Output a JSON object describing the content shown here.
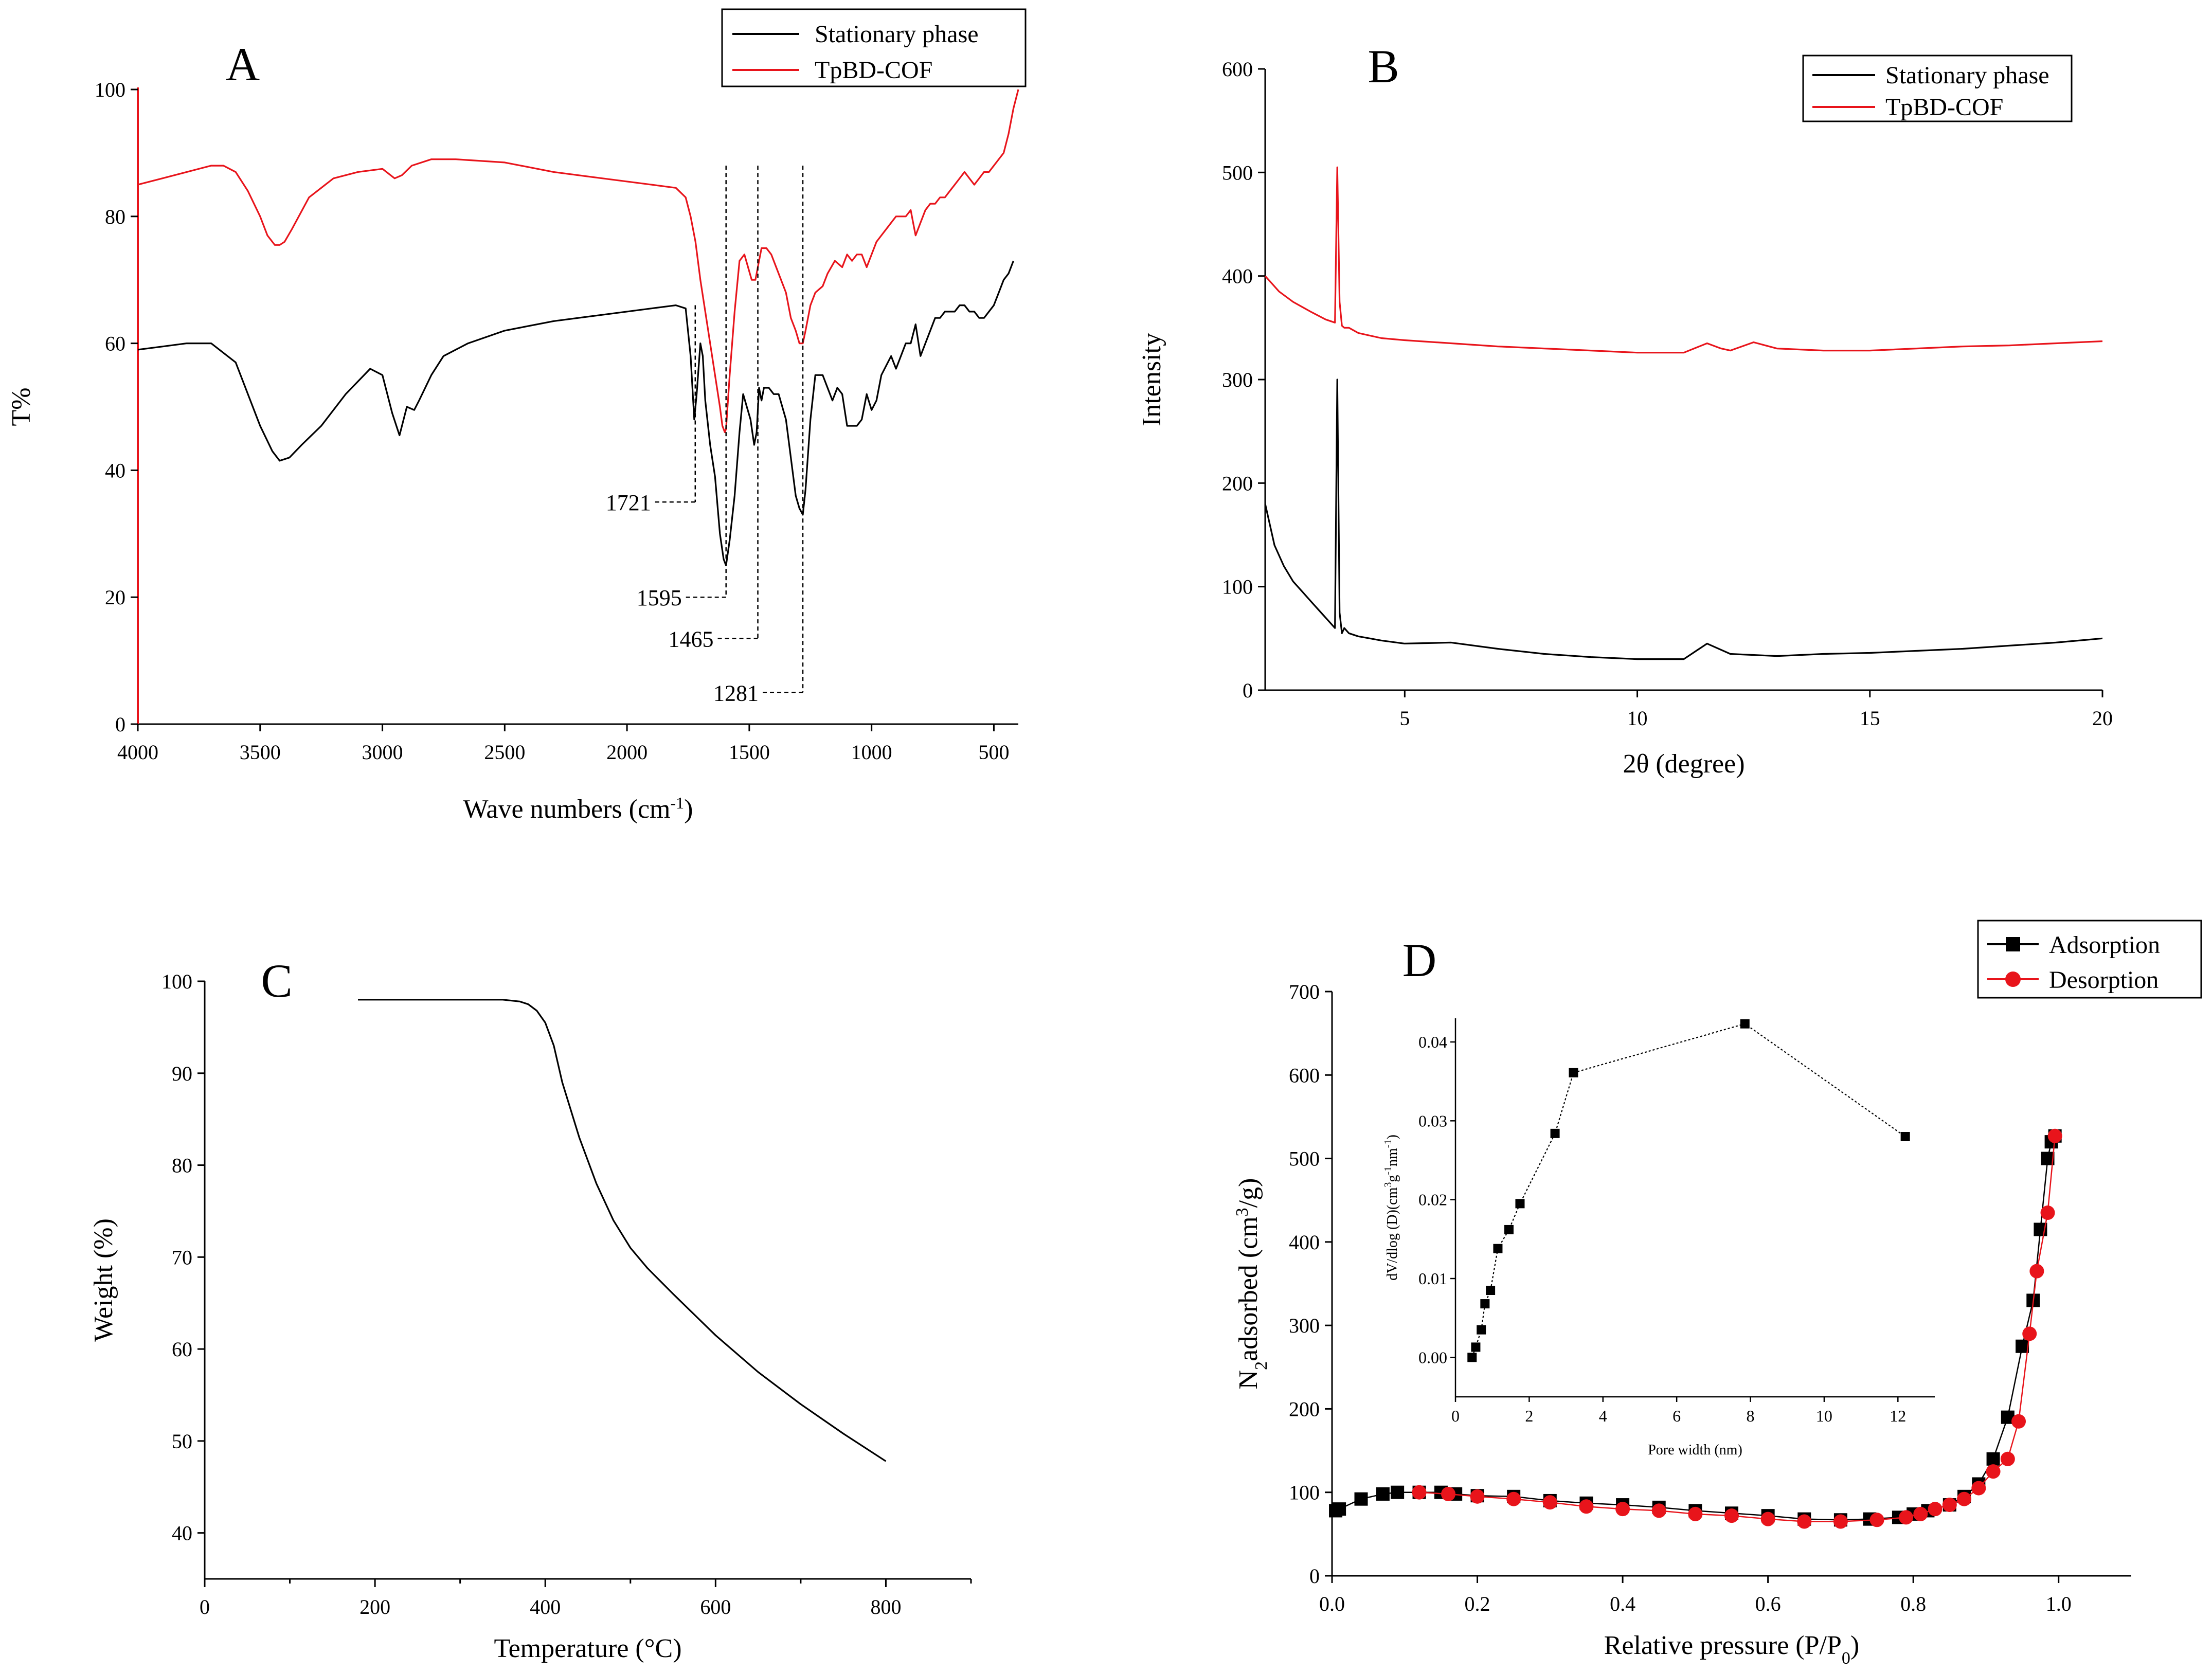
{
  "colors": {
    "black": "#000000",
    "red": "#e8141b",
    "white": "#ffffff"
  },
  "chart_data": [
    {
      "id": "A",
      "type": "line",
      "panel_label": "A",
      "xlabel": "Wave numbers (cm",
      "xlabel_sup": "-1",
      "xlabel_tail": ")",
      "ylabel": "T%",
      "xlim": [
        4000,
        400
      ],
      "ylim": [
        0,
        100
      ],
      "xticks": [
        4000,
        3500,
        3000,
        2500,
        2000,
        1500,
        1000,
        500
      ],
      "yticks": [
        0,
        20,
        40,
        60,
        80,
        100
      ],
      "legend": {
        "position": "top-right",
        "entries": [
          "Stationary phase",
          "TpBD-COF"
        ]
      },
      "annotations": [
        {
          "text": "1721",
          "x": 1721,
          "y_peak": 66,
          "y_text": 35
        },
        {
          "text": "1595",
          "x": 1595,
          "y_peak": 88,
          "y_text": 20
        },
        {
          "text": "1465",
          "x": 1465,
          "y_peak": 88,
          "y_text": 13.5
        },
        {
          "text": "1281",
          "x": 1281,
          "y_peak": 88,
          "y_text": 5
        }
      ],
      "series": [
        {
          "name": "Stationary phase",
          "color": "#000000",
          "x": [
            4000,
            3900,
            3800,
            3700,
            3600,
            3550,
            3500,
            3450,
            3420,
            3380,
            3330,
            3250,
            3150,
            3050,
            3000,
            2960,
            2930,
            2900,
            2870,
            2850,
            2800,
            2750,
            2650,
            2500,
            2300,
            2100,
            1900,
            1800,
            1760,
            1740,
            1725,
            1715,
            1700,
            1690,
            1680,
            1660,
            1640,
            1620,
            1605,
            1595,
            1580,
            1560,
            1540,
            1525,
            1510,
            1495,
            1480,
            1470,
            1460,
            1450,
            1440,
            1420,
            1400,
            1380,
            1350,
            1330,
            1310,
            1295,
            1281,
            1270,
            1250,
            1230,
            1200,
            1180,
            1160,
            1140,
            1120,
            1100,
            1060,
            1040,
            1020,
            1000,
            980,
            960,
            920,
            900,
            880,
            860,
            840,
            820,
            800,
            780,
            760,
            740,
            720,
            700,
            680,
            660,
            640,
            620,
            600,
            580,
            560,
            540,
            520,
            500,
            480,
            460,
            440,
            420
          ],
          "y": [
            59,
            59.5,
            60,
            60,
            57,
            52,
            47,
            43,
            41.5,
            42,
            44,
            47,
            52,
            56,
            55,
            49,
            45.5,
            50,
            49.5,
            51,
            55,
            58,
            60,
            62,
            63.5,
            64.5,
            65.5,
            66,
            65.5,
            58,
            48,
            52,
            60,
            58,
            51,
            44,
            39,
            30,
            26,
            25,
            29,
            36,
            46,
            52,
            50,
            48,
            44,
            46,
            53,
            51,
            53,
            53,
            52,
            52,
            48,
            42,
            36,
            34,
            33,
            37,
            48,
            55,
            55,
            53,
            51,
            53,
            52,
            47,
            47,
            48,
            52,
            49.5,
            51,
            55,
            58,
            56,
            58,
            60,
            60,
            63,
            58,
            60,
            62,
            64,
            64,
            65,
            65,
            65,
            66,
            66,
            65,
            65,
            64,
            64,
            65,
            66,
            68,
            70,
            71,
            73
          ]
        },
        {
          "name": "TpBD-COF",
          "color": "#e8141b",
          "x": [
            4000,
            3900,
            3800,
            3700,
            3650,
            3600,
            3550,
            3500,
            3470,
            3440,
            3420,
            3400,
            3370,
            3300,
            3200,
            3100,
            3000,
            2950,
            2920,
            2880,
            2800,
            2700,
            2500,
            2300,
            2100,
            1900,
            1800,
            1760,
            1740,
            1720,
            1700,
            1680,
            1660,
            1640,
            1620,
            1610,
            1600,
            1595,
            1580,
            1560,
            1540,
            1520,
            1505,
            1490,
            1475,
            1465,
            1450,
            1430,
            1410,
            1390,
            1370,
            1350,
            1330,
            1310,
            1295,
            1281,
            1270,
            1250,
            1230,
            1200,
            1180,
            1150,
            1120,
            1100,
            1080,
            1060,
            1040,
            1020,
            1000,
            980,
            960,
            940,
            920,
            900,
            880,
            860,
            840,
            830,
            820,
            800,
            780,
            760,
            740,
            720,
            700,
            680,
            660,
            640,
            620,
            600,
            580,
            560,
            540,
            520,
            500,
            480,
            460,
            440,
            420,
            400
          ],
          "y": [
            85,
            86,
            87,
            88,
            88,
            87,
            84,
            80,
            77,
            75.5,
            75.5,
            76,
            78,
            83,
            86,
            87,
            87.5,
            86,
            86.5,
            88,
            89,
            89,
            88.5,
            87,
            86,
            85,
            84.5,
            83,
            80,
            76,
            70,
            65,
            60,
            55,
            50,
            47,
            46,
            46.5,
            55,
            65,
            73,
            74,
            72,
            70,
            70,
            72,
            75,
            75,
            74,
            72,
            70,
            68,
            64,
            62,
            60,
            60,
            62,
            66,
            68,
            69,
            71,
            73,
            72,
            74,
            73,
            74,
            74,
            72,
            74,
            76,
            77,
            78,
            79,
            80,
            80,
            80,
            81,
            79,
            77,
            79,
            81,
            82,
            82,
            83,
            83,
            84,
            85,
            86,
            87,
            86,
            85,
            86,
            87,
            87,
            88,
            89,
            90,
            93,
            97,
            100
          ]
        }
      ]
    },
    {
      "id": "B",
      "type": "line",
      "panel_label": "B",
      "xlabel": "2θ (degree)",
      "ylabel": "Intensity",
      "xlim": [
        2,
        20
      ],
      "ylim": [
        0,
        600
      ],
      "xticks": [
        5,
        10,
        15,
        20
      ],
      "yticks": [
        0,
        100,
        200,
        300,
        400,
        500,
        600
      ],
      "legend": {
        "position": "top-right",
        "entries": [
          "Stationary phase",
          "TpBD-COF"
        ]
      },
      "series": [
        {
          "name": "Stationary phase",
          "color": "#000000",
          "x": [
            2,
            2.2,
            2.4,
            2.6,
            2.8,
            3,
            3.2,
            3.4,
            3.5,
            3.55,
            3.6,
            3.65,
            3.7,
            3.8,
            4,
            4.5,
            5,
            6,
            7,
            8,
            9,
            10,
            11,
            11.5,
            12,
            13,
            14,
            15,
            16,
            17,
            18,
            19,
            20
          ],
          "y": [
            180,
            140,
            120,
            105,
            95,
            85,
            75,
            65,
            60,
            300,
            75,
            55,
            60,
            55,
            52,
            48,
            45,
            46,
            40,
            35,
            32,
            30,
            30,
            45,
            35,
            33,
            35,
            36,
            38,
            40,
            43,
            46,
            50
          ]
        },
        {
          "name": "TpBD-COF",
          "color": "#e8141b",
          "x": [
            2,
            2.1,
            2.3,
            2.6,
            3,
            3.3,
            3.5,
            3.55,
            3.6,
            3.65,
            3.7,
            3.8,
            4,
            4.5,
            5,
            6,
            7,
            8,
            9,
            10,
            11,
            11.5,
            11.8,
            12,
            12.5,
            13,
            14,
            15,
            16,
            17,
            18,
            19,
            20
          ],
          "y": [
            400,
            395,
            385,
            375,
            365,
            358,
            355,
            505,
            375,
            352,
            350,
            350,
            345,
            340,
            338,
            335,
            332,
            330,
            328,
            326,
            326,
            335,
            330,
            328,
            336,
            330,
            328,
            328,
            330,
            332,
            333,
            335,
            337
          ]
        }
      ]
    },
    {
      "id": "C",
      "type": "line",
      "panel_label": "C",
      "xlabel": "Temperature (°C)",
      "ylabel": "Weight (%)",
      "xlim": [
        0,
        900
      ],
      "ylim": [
        35,
        100
      ],
      "xticks": [
        0,
        200,
        400,
        600,
        800
      ],
      "yticks": [
        40,
        50,
        60,
        70,
        80,
        90,
        100
      ],
      "series": [
        {
          "name": "",
          "color": "#000000",
          "x": [
            180,
            260,
            300,
            350,
            370,
            380,
            390,
            400,
            410,
            420,
            440,
            460,
            480,
            500,
            520,
            550,
            600,
            650,
            700,
            750,
            800
          ],
          "y": [
            98,
            98,
            98,
            98,
            97.8,
            97.5,
            96.8,
            95.5,
            93,
            89,
            83,
            78,
            74,
            71,
            68.8,
            66,
            61.5,
            57.5,
            54,
            50.8,
            47.8
          ]
        }
      ]
    },
    {
      "id": "D",
      "type": "scatter",
      "panel_label": "D",
      "xlabel": "Relative pressure (P/P",
      "xlabel_sub": "0",
      "xlabel_tail": ")",
      "ylabel_pre": "N",
      "ylabel_sub": "2",
      "ylabel_mid": "adsorbed (cm",
      "ylabel_sup": "3",
      "ylabel_tail": "/g)",
      "xlim": [
        0,
        1.1
      ],
      "ylim": [
        0,
        700
      ],
      "xticks": [
        0.0,
        0.2,
        0.4,
        0.6,
        0.8,
        1.0
      ],
      "xtick_labels": [
        "0.0",
        "0.2",
        "0.4",
        "0.6",
        "0.8",
        "1.0"
      ],
      "yticks": [
        0,
        100,
        200,
        300,
        400,
        500,
        600,
        700
      ],
      "legend": {
        "position": "top-right",
        "entries": [
          "Adsorption",
          "Desorption"
        ]
      },
      "series": [
        {
          "name": "Adsorption",
          "color": "#000000",
          "marker": "square",
          "x": [
            0.005,
            0.01,
            0.04,
            0.07,
            0.09,
            0.12,
            0.15,
            0.17,
            0.2,
            0.25,
            0.3,
            0.35,
            0.4,
            0.45,
            0.5,
            0.55,
            0.6,
            0.65,
            0.7,
            0.74,
            0.78,
            0.8,
            0.82,
            0.85,
            0.87,
            0.89,
            0.91,
            0.93,
            0.95,
            0.965,
            0.975,
            0.985,
            0.99,
            0.995
          ],
          "y": [
            78,
            80,
            92,
            98,
            100,
            100,
            100,
            98,
            96,
            95,
            90,
            87,
            85,
            82,
            78,
            75,
            72,
            68,
            67,
            68,
            70,
            74,
            78,
            85,
            95,
            110,
            140,
            190,
            275,
            330,
            415,
            500,
            520,
            527
          ]
        },
        {
          "name": "Desorption",
          "color": "#e8141b",
          "marker": "circle",
          "x": [
            0.995,
            0.985,
            0.97,
            0.96,
            0.945,
            0.93,
            0.91,
            0.89,
            0.87,
            0.85,
            0.83,
            0.81,
            0.79,
            0.75,
            0.7,
            0.65,
            0.6,
            0.55,
            0.5,
            0.45,
            0.4,
            0.35,
            0.3,
            0.25,
            0.2,
            0.16,
            0.12
          ],
          "y": [
            527,
            435,
            365,
            290,
            185,
            140,
            125,
            105,
            92,
            85,
            80,
            74,
            70,
            67,
            65,
            65,
            68,
            72,
            74,
            78,
            80,
            83,
            88,
            92,
            95,
            98,
            100
          ]
        }
      ]
    },
    {
      "id": "D-inset",
      "type": "line",
      "xlabel": "Pore width (nm)",
      "ylabel": "dV/dlog (D)(cm",
      "ylabel_sup1": "3",
      "ylabel_mid": "g",
      "ylabel_sup2": "-1",
      "ylabel_mid2": "nm",
      "ylabel_sup3": "-1",
      "ylabel_tail": ")",
      "xlim": [
        0,
        13
      ],
      "ylim": [
        -0.005,
        0.043
      ],
      "xticks": [
        0,
        2,
        4,
        6,
        8,
        10,
        12
      ],
      "yticks": [
        0.0,
        0.01,
        0.02,
        0.03,
        0.04
      ],
      "ytick_labels": [
        "0.00",
        "0.01",
        "0.02",
        "0.03",
        "0.04"
      ],
      "series": [
        {
          "name": "",
          "color": "#000000",
          "marker": "square",
          "x": [
            0.45,
            0.55,
            0.7,
            0.8,
            0.95,
            1.15,
            1.45,
            1.75,
            2.7,
            3.2,
            7.85,
            12.2
          ],
          "y": [
            0.0,
            0.0013,
            0.0035,
            0.0068,
            0.0085,
            0.0138,
            0.0162,
            0.0195,
            0.0284,
            0.0361,
            0.0423,
            0.028
          ]
        }
      ]
    }
  ]
}
